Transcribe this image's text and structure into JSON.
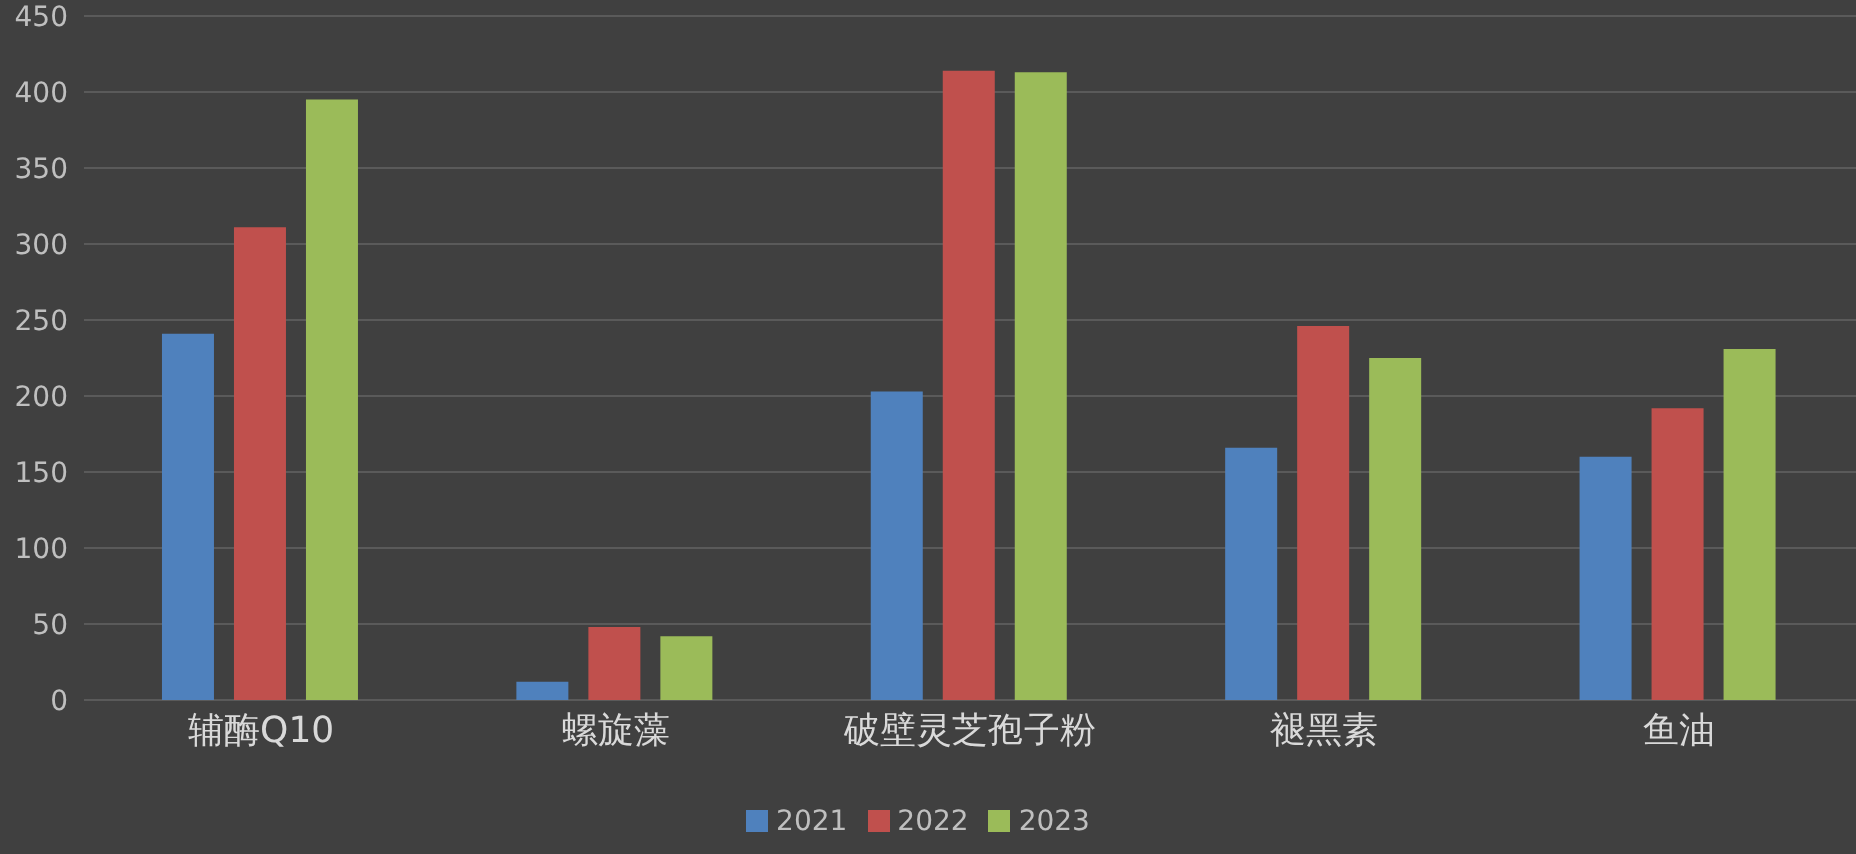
{
  "chart_data": {
    "type": "bar",
    "categories": [
      "辅酶Q10",
      "螺旋藻",
      "破壁灵芝孢子粉",
      "褪黑素",
      "鱼油"
    ],
    "series": [
      {
        "name": "2021",
        "color": "#4f81bd",
        "values": [
          241,
          12,
          203,
          166,
          160
        ]
      },
      {
        "name": "2022",
        "color": "#c0504d",
        "values": [
          311,
          48,
          414,
          246,
          192
        ]
      },
      {
        "name": "2023",
        "color": "#9bbb59",
        "values": [
          395,
          42,
          413,
          225,
          231
        ]
      }
    ],
    "ylim": [
      0,
      450
    ],
    "yticks": [
      0,
      50,
      100,
      150,
      200,
      250,
      300,
      350,
      400,
      450
    ],
    "grid": "y",
    "legend": "bottom"
  }
}
